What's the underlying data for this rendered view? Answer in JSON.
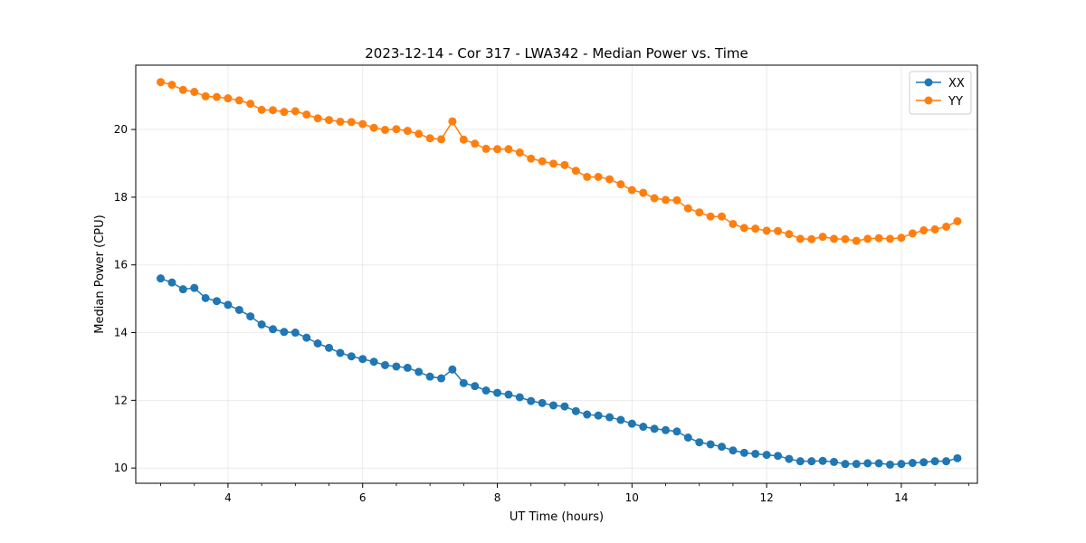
{
  "chart_data": {
    "type": "line",
    "title": "2023-12-14 - Cor 317 - LWA342 - Median Power vs. Time",
    "xlabel": "UT Time (hours)",
    "ylabel": "Median Power (CPU)",
    "xlim": [
      2.63,
      15.13
    ],
    "ylim": [
      9.55,
      21.9
    ],
    "x_ticks": [
      4,
      6,
      8,
      10,
      12,
      14
    ],
    "y_ticks": [
      10,
      12,
      14,
      16,
      18,
      20
    ],
    "grid": true,
    "legend_position": "top-right",
    "x": [
      3.0,
      3.167,
      3.333,
      3.5,
      3.667,
      3.833,
      4.0,
      4.167,
      4.333,
      4.5,
      4.667,
      4.833,
      5.0,
      5.167,
      5.333,
      5.5,
      5.667,
      5.833,
      6.0,
      6.167,
      6.333,
      6.5,
      6.667,
      6.833,
      7.0,
      7.167,
      7.333,
      7.5,
      7.667,
      7.833,
      8.0,
      8.167,
      8.333,
      8.5,
      8.667,
      8.833,
      9.0,
      9.167,
      9.333,
      9.5,
      9.667,
      9.833,
      10.0,
      10.167,
      10.333,
      10.5,
      10.667,
      10.833,
      11.0,
      11.167,
      11.333,
      11.5,
      11.667,
      11.833,
      12.0,
      12.167,
      12.333,
      12.5,
      12.667,
      12.833,
      13.0,
      13.167,
      13.333,
      13.5,
      13.667,
      13.833,
      14.0,
      14.167,
      14.333,
      14.5,
      14.667,
      14.833
    ],
    "series": [
      {
        "name": "XX",
        "color": "#1f77b4",
        "values": [
          15.6,
          15.48,
          15.28,
          15.32,
          15.02,
          14.93,
          14.82,
          14.67,
          14.48,
          14.24,
          14.1,
          14.02,
          14.0,
          13.85,
          13.68,
          13.55,
          13.4,
          13.3,
          13.22,
          13.14,
          13.04,
          13.0,
          12.96,
          12.84,
          12.7,
          12.65,
          12.91,
          12.51,
          12.42,
          12.29,
          12.22,
          12.17,
          12.09,
          11.98,
          11.92,
          11.85,
          11.82,
          11.68,
          11.58,
          11.55,
          11.5,
          11.42,
          11.31,
          11.22,
          11.16,
          11.12,
          11.08,
          10.9,
          10.76,
          10.7,
          10.63,
          10.52,
          10.45,
          10.42,
          10.39,
          10.36,
          10.27,
          10.2,
          10.2,
          10.21,
          10.18,
          10.12,
          10.12,
          10.14,
          10.14,
          10.1,
          10.12,
          10.15,
          10.17,
          10.2,
          10.2,
          10.29
        ]
      },
      {
        "name": "YY",
        "color": "#ff7f0e",
        "values": [
          21.4,
          21.32,
          21.17,
          21.11,
          20.98,
          20.96,
          20.92,
          20.86,
          20.76,
          20.58,
          20.57,
          20.52,
          20.54,
          20.44,
          20.33,
          20.28,
          20.23,
          20.22,
          20.16,
          20.05,
          19.99,
          20.01,
          19.96,
          19.87,
          19.74,
          19.71,
          20.24,
          19.7,
          19.58,
          19.43,
          19.42,
          19.42,
          19.32,
          19.14,
          19.06,
          18.99,
          18.95,
          18.78,
          18.6,
          18.6,
          18.53,
          18.38,
          18.21,
          18.13,
          17.97,
          17.92,
          17.91,
          17.67,
          17.55,
          17.43,
          17.43,
          17.21,
          17.09,
          17.07,
          17.01,
          17.0,
          16.91,
          16.77,
          16.76,
          16.83,
          16.77,
          16.76,
          16.71,
          16.77,
          16.79,
          16.77,
          16.8,
          16.93,
          17.02,
          17.05,
          17.13,
          17.29
        ]
      }
    ]
  }
}
